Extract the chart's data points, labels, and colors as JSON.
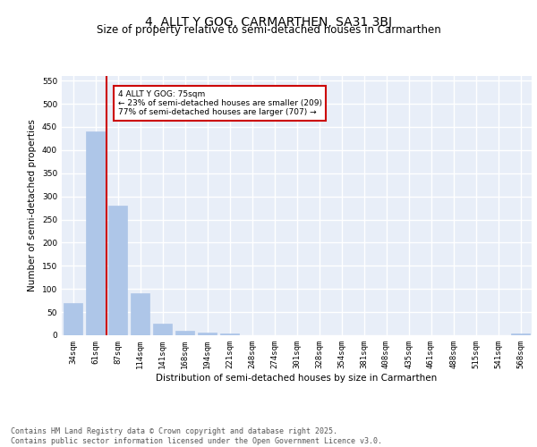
{
  "title": "4, ALLT Y GOG, CARMARTHEN, SA31 3BJ",
  "subtitle": "Size of property relative to semi-detached houses in Carmarthen",
  "xlabel": "Distribution of semi-detached houses by size in Carmarthen",
  "ylabel": "Number of semi-detached properties",
  "categories": [
    "34sqm",
    "61sqm",
    "87sqm",
    "114sqm",
    "141sqm",
    "168sqm",
    "194sqm",
    "221sqm",
    "248sqm",
    "274sqm",
    "301sqm",
    "328sqm",
    "354sqm",
    "381sqm",
    "408sqm",
    "435sqm",
    "461sqm",
    "488sqm",
    "515sqm",
    "541sqm",
    "568sqm"
  ],
  "values": [
    70,
    440,
    280,
    90,
    25,
    10,
    5,
    3,
    0,
    0,
    0,
    0,
    0,
    0,
    0,
    0,
    0,
    0,
    0,
    0,
    3
  ],
  "bar_color": "#aec6e8",
  "bar_edge_color": "#aec6e8",
  "vline_x": 1.5,
  "vline_color": "#cc0000",
  "annotation_text": "4 ALLT Y GOG: 75sqm\n← 23% of semi-detached houses are smaller (209)\n77% of semi-detached houses are larger (707) →",
  "annotation_box_color": "#cc0000",
  "ylim": [
    0,
    560
  ],
  "yticks": [
    0,
    50,
    100,
    150,
    200,
    250,
    300,
    350,
    400,
    450,
    500,
    550
  ],
  "background_color": "#e8eef8",
  "grid_color": "#ffffff",
  "footer": "Contains HM Land Registry data © Crown copyright and database right 2025.\nContains public sector information licensed under the Open Government Licence v3.0.",
  "title_fontsize": 10,
  "subtitle_fontsize": 8.5,
  "label_fontsize": 7.5,
  "tick_fontsize": 6.5,
  "footer_fontsize": 6.0
}
